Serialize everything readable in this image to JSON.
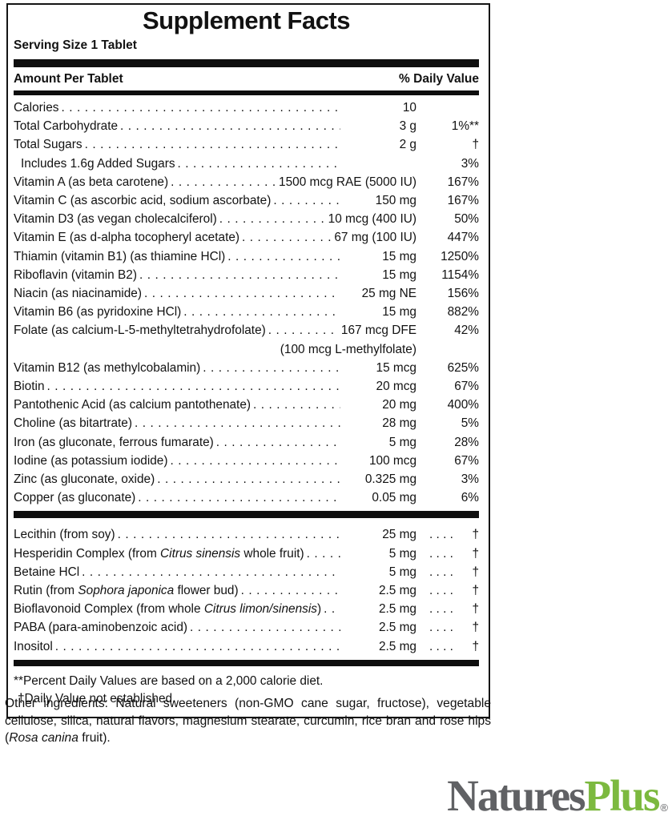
{
  "panel": {
    "title": "Supplement Facts",
    "serving_size": "Serving Size 1 Tablet",
    "columns": {
      "amount_header": "Amount Per Tablet",
      "dv_header": "% Daily Value"
    },
    "dv_leader_dots": ". . . .",
    "main_rows": [
      {
        "name": [
          [
            "Calories",
            false
          ]
        ],
        "amount": "10",
        "dv": ""
      },
      {
        "name": [
          [
            "Total Carbohydrate",
            false
          ]
        ],
        "amount": "3 g",
        "dv": "1%**"
      },
      {
        "name": [
          [
            "Total Sugars",
            false
          ]
        ],
        "amount": "2 g",
        "dv": "†"
      },
      {
        "name": [
          [
            "Includes 1.6g Added Sugars",
            false
          ]
        ],
        "amount": "",
        "dv": "3%",
        "indent": true
      },
      {
        "name": [
          [
            "Vitamin A (as beta carotene)",
            false
          ]
        ],
        "amount": "1500 mcg RAE (5000 IU)",
        "dv": "167%"
      },
      {
        "name": [
          [
            "Vitamin C (as ascorbic acid, sodium ascorbate)",
            false
          ]
        ],
        "amount": "150 mg",
        "dv": "167%"
      },
      {
        "name": [
          [
            "Vitamin D3 (as vegan cholecalciferol)",
            false
          ]
        ],
        "amount": "10 mcg (400 IU)",
        "dv": "50%"
      },
      {
        "name": [
          [
            "Vitamin E (as d-alpha tocopheryl acetate)",
            false
          ]
        ],
        "amount": "67 mg (100 IU)",
        "dv": "447%"
      },
      {
        "name": [
          [
            "Thiamin (vitamin B1) (as thiamine HCl)",
            false
          ]
        ],
        "amount": "15 mg",
        "dv": "1250%"
      },
      {
        "name": [
          [
            "Riboflavin (vitamin B2)",
            false
          ]
        ],
        "amount": "15 mg",
        "dv": "1154%"
      },
      {
        "name": [
          [
            "Niacin (as niacinamide)",
            false
          ]
        ],
        "amount": "25 mg NE",
        "dv": "156%"
      },
      {
        "name": [
          [
            "Vitamin B6 (as pyridoxine HCl)",
            false
          ]
        ],
        "amount": "15 mg",
        "dv": "882%"
      },
      {
        "name": [
          [
            "Folate (as calcium-L-5-methyltetrahydrofolate)",
            false
          ]
        ],
        "amount": "167 mcg DFE",
        "dv": "42%"
      },
      {
        "name": [],
        "amount": "(100 mcg L-methylfolate)",
        "dv": "",
        "no_dots": true
      },
      {
        "name": [
          [
            "Vitamin B12 (as methylcobalamin)",
            false
          ]
        ],
        "amount": "15 mcg",
        "dv": "625%"
      },
      {
        "name": [
          [
            "Biotin",
            false
          ]
        ],
        "amount": "20 mcg",
        "dv": "67%"
      },
      {
        "name": [
          [
            "Pantothenic Acid (as calcium pantothenate)",
            false
          ]
        ],
        "amount": "20 mg",
        "dv": "400%"
      },
      {
        "name": [
          [
            "Choline (as bitartrate)",
            false
          ]
        ],
        "amount": "28 mg",
        "dv": "5%"
      },
      {
        "name": [
          [
            "Iron (as gluconate, ferrous fumarate)",
            false
          ]
        ],
        "amount": "5 mg",
        "dv": "28%"
      },
      {
        "name": [
          [
            "Iodine (as potassium iodide)",
            false
          ]
        ],
        "amount": "100 mcg",
        "dv": "67%"
      },
      {
        "name": [
          [
            "Zinc (as gluconate, oxide)",
            false
          ]
        ],
        "amount": "0.325 mg",
        "dv": "3%"
      },
      {
        "name": [
          [
            "Copper (as gluconate)",
            false
          ]
        ],
        "amount": "0.05 mg",
        "dv": "6%"
      }
    ],
    "botanical_rows": [
      {
        "name": [
          [
            "Lecithin (from soy)",
            false
          ]
        ],
        "amount": "25 mg",
        "dv": "†",
        "dv_leader": true
      },
      {
        "name": [
          [
            "Hesperidin Complex (from ",
            false
          ],
          [
            "Citrus sinensis",
            true
          ],
          [
            " whole fruit)",
            false
          ]
        ],
        "amount": "5 mg",
        "dv": "†",
        "dv_leader": true
      },
      {
        "name": [
          [
            "Betaine HCl",
            false
          ]
        ],
        "amount": "5 mg",
        "dv": "†",
        "dv_leader": true
      },
      {
        "name": [
          [
            "Rutin (from ",
            false
          ],
          [
            "Sophora japonica",
            true
          ],
          [
            " flower bud)",
            false
          ]
        ],
        "amount": "2.5 mg",
        "dv": "†",
        "dv_leader": true
      },
      {
        "name": [
          [
            "Bioflavonoid Complex (from whole ",
            false
          ],
          [
            "Citrus limon/sinensis",
            true
          ],
          [
            ")",
            false
          ]
        ],
        "amount": "2.5 mg",
        "dv": "†",
        "dv_leader": true
      },
      {
        "name": [
          [
            "PABA (para-aminobenzoic acid)",
            false
          ]
        ],
        "amount": "2.5 mg",
        "dv": "†",
        "dv_leader": true
      },
      {
        "name": [
          [
            "Inositol",
            false
          ]
        ],
        "amount": "2.5 mg",
        "dv": "†",
        "dv_leader": true
      }
    ],
    "footnotes": [
      "**Percent Daily Values are based on a 2,000 calorie diet.",
      "†Daily Value not established."
    ]
  },
  "other_ingredients": {
    "segments": [
      [
        "Other ingredients: Natural sweeteners (non-GMO cane sugar, fructose), vegetable cellulose, silica, natural flavors, magnesium stearate, curcumin, rice bran and rose hips (",
        false
      ],
      [
        "Rosa canina",
        true
      ],
      [
        " fruit).",
        false
      ]
    ]
  },
  "brand": {
    "name_part1": "Natures",
    "name_part2": "Plus",
    "registered": "®",
    "color_natures": "#606164",
    "color_plus": "#7cb93f"
  }
}
